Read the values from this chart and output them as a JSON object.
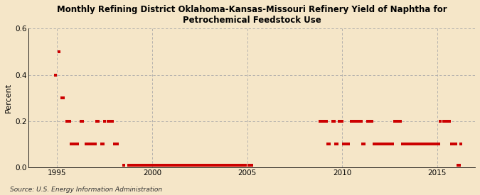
{
  "title": "Monthly Refining District Oklahoma-Kansas-Missouri Refinery Yield of Naphtha for\nPetrochemical Feedstock Use",
  "ylabel": "Percent",
  "source": "Source: U.S. Energy Information Administration",
  "background_color": "#f5e6c8",
  "plot_bg_color": "#f5e6c8",
  "line_color": "#cc0000",
  "ylim": [
    0.0,
    0.6
  ],
  "yticks": [
    0.0,
    0.2,
    0.4,
    0.6
  ],
  "xlim_start": 1993.5,
  "xlim_end": 2017.0,
  "xticks": [
    1995,
    2000,
    2005,
    2010,
    2015
  ],
  "data_points": [
    [
      1994.917,
      0.4
    ],
    [
      1995.083,
      0.5
    ],
    [
      1995.25,
      0.3
    ],
    [
      1995.333,
      0.3
    ],
    [
      1995.5,
      0.2
    ],
    [
      1995.583,
      0.2
    ],
    [
      1995.667,
      0.2
    ],
    [
      1995.75,
      0.1
    ],
    [
      1995.833,
      0.1
    ],
    [
      1995.917,
      0.1
    ],
    [
      1996.0,
      0.1
    ],
    [
      1996.083,
      0.1
    ],
    [
      1996.25,
      0.2
    ],
    [
      1996.333,
      0.2
    ],
    [
      1996.5,
      0.1
    ],
    [
      1996.583,
      0.1
    ],
    [
      1996.667,
      0.1
    ],
    [
      1996.75,
      0.1
    ],
    [
      1996.833,
      0.1
    ],
    [
      1996.917,
      0.1
    ],
    [
      1997.0,
      0.1
    ],
    [
      1997.083,
      0.2
    ],
    [
      1997.167,
      0.2
    ],
    [
      1997.333,
      0.1
    ],
    [
      1997.417,
      0.1
    ],
    [
      1997.5,
      0.2
    ],
    [
      1997.667,
      0.2
    ],
    [
      1997.75,
      0.2
    ],
    [
      1997.833,
      0.2
    ],
    [
      1997.917,
      0.2
    ],
    [
      1998.0,
      0.1
    ],
    [
      1998.083,
      0.1
    ],
    [
      1998.167,
      0.1
    ],
    [
      1998.5,
      0.01
    ],
    [
      1998.75,
      0.01
    ],
    [
      1998.833,
      0.01
    ],
    [
      1998.917,
      0.01
    ],
    [
      1999.0,
      0.01
    ],
    [
      1999.083,
      0.01
    ],
    [
      1999.167,
      0.01
    ],
    [
      1999.25,
      0.01
    ],
    [
      1999.333,
      0.01
    ],
    [
      1999.417,
      0.01
    ],
    [
      1999.5,
      0.01
    ],
    [
      1999.583,
      0.01
    ],
    [
      1999.667,
      0.01
    ],
    [
      1999.75,
      0.01
    ],
    [
      1999.833,
      0.01
    ],
    [
      1999.917,
      0.01
    ],
    [
      2000.0,
      0.01
    ],
    [
      2000.083,
      0.01
    ],
    [
      2000.167,
      0.01
    ],
    [
      2000.25,
      0.01
    ],
    [
      2000.333,
      0.01
    ],
    [
      2000.417,
      0.01
    ],
    [
      2000.5,
      0.01
    ],
    [
      2000.583,
      0.01
    ],
    [
      2000.667,
      0.01
    ],
    [
      2000.75,
      0.01
    ],
    [
      2000.833,
      0.01
    ],
    [
      2000.917,
      0.01
    ],
    [
      2001.0,
      0.01
    ],
    [
      2001.083,
      0.01
    ],
    [
      2001.167,
      0.01
    ],
    [
      2001.25,
      0.01
    ],
    [
      2001.333,
      0.01
    ],
    [
      2001.417,
      0.01
    ],
    [
      2001.5,
      0.01
    ],
    [
      2001.583,
      0.01
    ],
    [
      2001.667,
      0.01
    ],
    [
      2001.75,
      0.01
    ],
    [
      2001.833,
      0.01
    ],
    [
      2001.917,
      0.01
    ],
    [
      2002.0,
      0.01
    ],
    [
      2002.083,
      0.01
    ],
    [
      2002.167,
      0.01
    ],
    [
      2002.25,
      0.01
    ],
    [
      2002.333,
      0.01
    ],
    [
      2002.417,
      0.01
    ],
    [
      2002.5,
      0.01
    ],
    [
      2002.583,
      0.01
    ],
    [
      2002.667,
      0.01
    ],
    [
      2002.75,
      0.01
    ],
    [
      2002.833,
      0.01
    ],
    [
      2002.917,
      0.01
    ],
    [
      2003.0,
      0.01
    ],
    [
      2003.083,
      0.01
    ],
    [
      2003.167,
      0.01
    ],
    [
      2003.25,
      0.01
    ],
    [
      2003.333,
      0.01
    ],
    [
      2003.417,
      0.01
    ],
    [
      2003.5,
      0.01
    ],
    [
      2003.583,
      0.01
    ],
    [
      2003.667,
      0.01
    ],
    [
      2003.75,
      0.01
    ],
    [
      2003.833,
      0.01
    ],
    [
      2003.917,
      0.01
    ],
    [
      2004.0,
      0.01
    ],
    [
      2004.083,
      0.01
    ],
    [
      2004.167,
      0.01
    ],
    [
      2004.25,
      0.01
    ],
    [
      2004.333,
      0.01
    ],
    [
      2004.417,
      0.01
    ],
    [
      2004.5,
      0.01
    ],
    [
      2004.583,
      0.01
    ],
    [
      2004.667,
      0.01
    ],
    [
      2004.75,
      0.01
    ],
    [
      2004.833,
      0.01
    ],
    [
      2004.917,
      0.01
    ],
    [
      2005.083,
      0.01
    ],
    [
      2005.25,
      0.01
    ],
    [
      2008.833,
      0.2
    ],
    [
      2008.917,
      0.2
    ],
    [
      2009.0,
      0.2
    ],
    [
      2009.083,
      0.2
    ],
    [
      2009.167,
      0.2
    ],
    [
      2009.25,
      0.1
    ],
    [
      2009.333,
      0.1
    ],
    [
      2009.5,
      0.2
    ],
    [
      2009.583,
      0.2
    ],
    [
      2009.667,
      0.1
    ],
    [
      2009.75,
      0.1
    ],
    [
      2009.833,
      0.2
    ],
    [
      2009.917,
      0.2
    ],
    [
      2010.0,
      0.2
    ],
    [
      2010.083,
      0.1
    ],
    [
      2010.167,
      0.1
    ],
    [
      2010.25,
      0.1
    ],
    [
      2010.333,
      0.1
    ],
    [
      2010.5,
      0.2
    ],
    [
      2010.583,
      0.2
    ],
    [
      2010.667,
      0.2
    ],
    [
      2010.75,
      0.2
    ],
    [
      2010.833,
      0.2
    ],
    [
      2010.917,
      0.2
    ],
    [
      2011.0,
      0.2
    ],
    [
      2011.083,
      0.1
    ],
    [
      2011.167,
      0.1
    ],
    [
      2011.333,
      0.2
    ],
    [
      2011.417,
      0.2
    ],
    [
      2011.5,
      0.2
    ],
    [
      2011.583,
      0.2
    ],
    [
      2011.667,
      0.1
    ],
    [
      2011.75,
      0.1
    ],
    [
      2011.833,
      0.1
    ],
    [
      2011.917,
      0.1
    ],
    [
      2012.0,
      0.1
    ],
    [
      2012.083,
      0.1
    ],
    [
      2012.167,
      0.1
    ],
    [
      2012.25,
      0.1
    ],
    [
      2012.333,
      0.1
    ],
    [
      2012.417,
      0.1
    ],
    [
      2012.5,
      0.1
    ],
    [
      2012.583,
      0.1
    ],
    [
      2012.667,
      0.1
    ],
    [
      2012.75,
      0.2
    ],
    [
      2012.833,
      0.2
    ],
    [
      2012.917,
      0.2
    ],
    [
      2013.0,
      0.2
    ],
    [
      2013.083,
      0.2
    ],
    [
      2013.167,
      0.1
    ],
    [
      2013.25,
      0.1
    ],
    [
      2013.333,
      0.1
    ],
    [
      2013.417,
      0.1
    ],
    [
      2013.5,
      0.1
    ],
    [
      2013.583,
      0.1
    ],
    [
      2013.667,
      0.1
    ],
    [
      2013.75,
      0.1
    ],
    [
      2013.833,
      0.1
    ],
    [
      2013.917,
      0.1
    ],
    [
      2014.0,
      0.1
    ],
    [
      2014.083,
      0.1
    ],
    [
      2014.167,
      0.1
    ],
    [
      2014.25,
      0.1
    ],
    [
      2014.333,
      0.1
    ],
    [
      2014.417,
      0.1
    ],
    [
      2014.5,
      0.1
    ],
    [
      2014.583,
      0.1
    ],
    [
      2014.667,
      0.1
    ],
    [
      2014.75,
      0.1
    ],
    [
      2014.833,
      0.1
    ],
    [
      2014.917,
      0.1
    ],
    [
      2015.0,
      0.1
    ],
    [
      2015.083,
      0.1
    ],
    [
      2015.167,
      0.2
    ],
    [
      2015.333,
      0.2
    ],
    [
      2015.5,
      0.2
    ],
    [
      2015.583,
      0.2
    ],
    [
      2015.667,
      0.2
    ],
    [
      2015.75,
      0.1
    ],
    [
      2015.833,
      0.1
    ],
    [
      2015.917,
      0.1
    ],
    [
      2016.0,
      0.1
    ],
    [
      2016.083,
      0.01
    ],
    [
      2016.167,
      0.01
    ],
    [
      2016.25,
      0.1
    ]
  ]
}
